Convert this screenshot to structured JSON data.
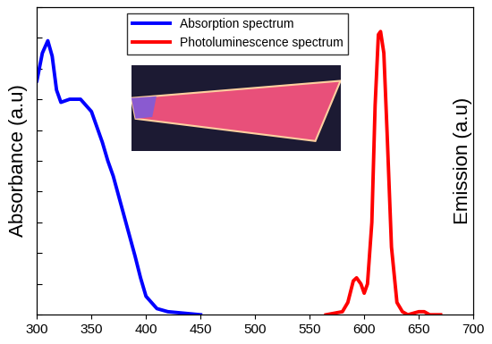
{
  "chart_data": {
    "type": "line",
    "y_label": "Absorbance (a.u)",
    "y2_label": "Emission (a.u)",
    "xlim": [
      300,
      700
    ],
    "xticks": [
      300,
      350,
      400,
      450,
      500,
      550,
      600,
      650,
      700
    ],
    "ylim": [
      0,
      1
    ],
    "yticks": [
      0,
      0.1,
      0.2,
      0.3,
      0.4,
      0.5,
      0.6,
      0.7,
      0.8,
      0.9,
      1.0
    ],
    "y2lim": [
      0,
      1
    ],
    "tick_labels": "x",
    "legend": "upper center",
    "series": [
      {
        "name": "Absorption spectrum",
        "color": "#0000ff",
        "x": [
          300,
          305,
          310,
          314,
          318,
          322,
          330,
          340,
          350,
          360,
          365,
          370,
          380,
          390,
          395,
          400,
          410,
          420,
          450
        ],
        "values": [
          0.76,
          0.85,
          0.89,
          0.84,
          0.73,
          0.69,
          0.7,
          0.7,
          0.66,
          0.56,
          0.5,
          0.45,
          0.32,
          0.19,
          0.12,
          0.06,
          0.02,
          0.01,
          0.0
        ]
      },
      {
        "name": "Photoluminescence spectrum",
        "color": "#ff0000",
        "axis": "y2",
        "x": [
          565,
          580,
          585,
          590,
          593,
          597,
          600,
          603,
          607,
          610,
          613,
          615,
          618,
          621,
          625,
          630,
          635,
          640,
          650,
          655,
          660,
          670
        ],
        "values": [
          0.0,
          0.01,
          0.04,
          0.11,
          0.12,
          0.1,
          0.07,
          0.1,
          0.3,
          0.68,
          0.91,
          0.92,
          0.85,
          0.59,
          0.22,
          0.04,
          0.01,
          0.0,
          0.01,
          0.01,
          0.0,
          0.0
        ]
      }
    ]
  }
}
